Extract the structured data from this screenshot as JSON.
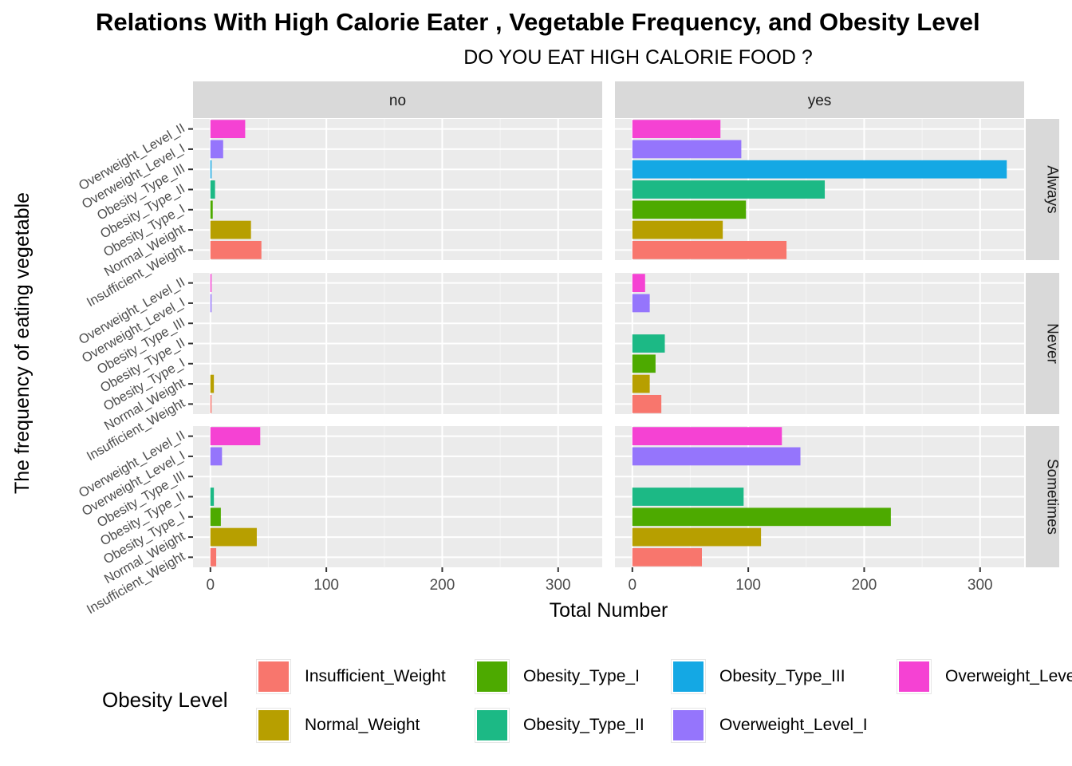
{
  "chart_data": {
    "type": "bar",
    "orientation": "horizontal",
    "title": "Relations With High Calorie Eater , Vegetable Frequency, and Obesity Level",
    "subtitle": "DO YOU EAT HIGH CALORIE FOOD ?",
    "xlabel": "Total Number",
    "ylabel": "The frequency of eating vegetable",
    "xlim": [
      -15,
      338
    ],
    "x_ticks": [
      "0",
      "100",
      "200",
      "300"
    ],
    "x_tick_values": [
      0,
      100,
      200,
      300
    ],
    "facet_columns": [
      "no",
      "yes"
    ],
    "facet_rows": [
      "Always",
      "Never",
      "Sometimes"
    ],
    "categories": [
      "Insufficient_Weight",
      "Normal_Weight",
      "Obesity_Type_I",
      "Obesity_Type_II",
      "Obesity_Type_III",
      "Overweight_Level_I",
      "Overweight_Level_II"
    ],
    "colors": {
      "Insufficient_Weight": "#F8766D",
      "Normal_Weight": "#B79F00",
      "Obesity_Type_I": "#4DAA00",
      "Obesity_Type_II": "#1CB985",
      "Obesity_Type_III": "#14A8E4",
      "Overweight_Level_I": "#9575FC",
      "Overweight_Level_II": "#F542D3"
    },
    "legend": {
      "title": "Obesity Level",
      "position": "bottom",
      "entries": [
        "Insufficient_Weight",
        "Normal_Weight",
        "Obesity_Type_I",
        "Obesity_Type_II",
        "Obesity_Type_III",
        "Overweight_Level_I",
        "Overweight_Level_II"
      ]
    },
    "panels": [
      {
        "row": "Always",
        "column": "no",
        "values": [
          44,
          35,
          2,
          4,
          1,
          11,
          30
        ]
      },
      {
        "row": "Always",
        "column": "yes",
        "values": [
          133,
          78,
          98,
          166,
          323,
          94,
          76
        ]
      },
      {
        "row": "Never",
        "column": "no",
        "values": [
          1,
          3,
          0,
          0,
          0,
          1,
          1
        ]
      },
      {
        "row": "Never",
        "column": "yes",
        "values": [
          25,
          15,
          20,
          28,
          0,
          15,
          11
        ]
      },
      {
        "row": "Sometimes",
        "column": "no",
        "values": [
          5,
          40,
          9,
          3,
          0,
          10,
          43
        ]
      },
      {
        "row": "Sometimes",
        "column": "yes",
        "values": [
          60,
          111,
          223,
          96,
          0,
          145,
          129
        ]
      }
    ],
    "grid": true
  }
}
